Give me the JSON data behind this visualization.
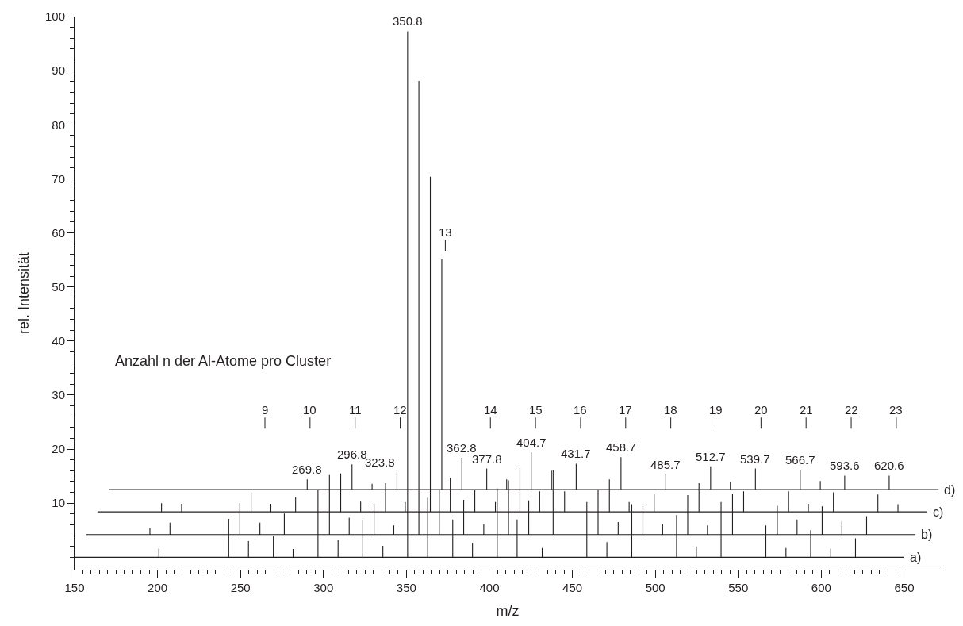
{
  "chart_data": {
    "type": "line",
    "xlabel": "m/z",
    "ylabel": "rel. Intensität",
    "line_style": "solid",
    "xlim": [
      150,
      672
    ],
    "ylim": [
      -2.3,
      100
    ],
    "xticks": [
      150,
      {
        "value": 155,
        "label": null
      },
      {
        "value": 160,
        "label": null
      },
      {
        "value": 165,
        "label": null
      },
      {
        "value": 170,
        "label": null
      },
      {
        "value": 175,
        "label": null
      },
      {
        "value": 180,
        "label": null
      },
      {
        "value": 185,
        "label": null
      },
      {
        "value": 190,
        "label": null
      },
      {
        "value": 195,
        "label": null
      },
      200,
      {
        "value": 205,
        "label": null
      },
      {
        "value": 210,
        "label": null
      },
      {
        "value": 215,
        "label": null
      },
      {
        "value": 220,
        "label": null
      },
      {
        "value": 225,
        "label": null
      },
      {
        "value": 230,
        "label": null
      },
      {
        "value": 235,
        "label": null
      },
      {
        "value": 240,
        "label": null
      },
      {
        "value": 245,
        "label": null
      },
      250,
      {
        "value": 255,
        "label": null
      },
      {
        "value": 260,
        "label": null
      },
      {
        "value": 265,
        "label": null
      },
      {
        "value": 270,
        "label": null
      },
      {
        "value": 275,
        "label": null
      },
      {
        "value": 280,
        "label": null
      },
      {
        "value": 285,
        "label": null
      },
      {
        "value": 290,
        "label": null
      },
      {
        "value": 295,
        "label": null
      },
      300,
      {
        "value": 305,
        "label": null
      },
      {
        "value": 310,
        "label": null
      },
      {
        "value": 315,
        "label": null
      },
      {
        "value": 320,
        "label": null
      },
      {
        "value": 325,
        "label": null
      },
      {
        "value": 330,
        "label": null
      },
      {
        "value": 335,
        "label": null
      },
      {
        "value": 340,
        "label": null
      },
      {
        "value": 345,
        "label": null
      },
      350,
      {
        "value": 355,
        "label": null
      },
      {
        "value": 360,
        "label": null
      },
      {
        "value": 365,
        "label": null
      },
      {
        "value": 370,
        "label": null
      },
      {
        "value": 375,
        "label": null
      },
      {
        "value": 380,
        "label": null
      },
      {
        "value": 385,
        "label": null
      },
      {
        "value": 390,
        "label": null
      },
      {
        "value": 395,
        "label": null
      },
      400,
      {
        "value": 405,
        "label": null
      },
      {
        "value": 410,
        "label": null
      },
      {
        "value": 415,
        "label": null
      },
      {
        "value": 420,
        "label": null
      },
      {
        "value": 425,
        "label": null
      },
      {
        "value": 430,
        "label": null
      },
      {
        "value": 435,
        "label": null
      },
      {
        "value": 440,
        "label": null
      },
      {
        "value": 445,
        "label": null
      },
      450,
      {
        "value": 455,
        "label": null
      },
      {
        "value": 460,
        "label": null
      },
      {
        "value": 465,
        "label": null
      },
      {
        "value": 470,
        "label": null
      },
      {
        "value": 475,
        "label": null
      },
      {
        "value": 480,
        "label": null
      },
      {
        "value": 485,
        "label": null
      },
      {
        "value": 490,
        "label": null
      },
      {
        "value": 495,
        "label": null
      },
      500,
      {
        "value": 505,
        "label": null
      },
      {
        "value": 510,
        "label": null
      },
      {
        "value": 515,
        "label": null
      },
      {
        "value": 520,
        "label": null
      },
      {
        "value": 525,
        "label": null
      },
      {
        "value": 530,
        "label": null
      },
      {
        "value": 535,
        "label": null
      },
      {
        "value": 540,
        "label": null
      },
      {
        "value": 545,
        "label": null
      },
      550,
      {
        "value": 555,
        "label": null
      },
      {
        "value": 560,
        "label": null
      },
      {
        "value": 565,
        "label": null
      },
      {
        "value": 570,
        "label": null
      },
      {
        "value": 575,
        "label": null
      },
      {
        "value": 580,
        "label": null
      },
      {
        "value": 585,
        "label": null
      },
      {
        "value": 590,
        "label": null
      },
      {
        "value": 595,
        "label": null
      },
      600,
      {
        "value": 605,
        "label": null
      },
      {
        "value": 610,
        "label": null
      },
      {
        "value": 615,
        "label": null
      },
      {
        "value": 620,
        "label": null
      },
      {
        "value": 625,
        "label": null
      },
      {
        "value": 630,
        "label": null
      },
      {
        "value": 635,
        "label": null
      },
      {
        "value": 640,
        "label": null
      },
      {
        "value": 645,
        "label": null
      },
      650
    ],
    "yticks": [
      {
        "value": 0,
        "label": null
      },
      {
        "value": 2,
        "label": null
      },
      {
        "value": 4,
        "label": null
      },
      {
        "value": 6,
        "label": null
      },
      {
        "value": 8,
        "label": null
      },
      10,
      {
        "value": 12,
        "label": null
      },
      {
        "value": 14,
        "label": null
      },
      {
        "value": 16,
        "label": null
      },
      {
        "value": 18,
        "label": null
      },
      20,
      {
        "value": 22,
        "label": null
      },
      {
        "value": 24,
        "label": null
      },
      {
        "value": 26,
        "label": null
      },
      {
        "value": 28,
        "label": null
      },
      30,
      {
        "value": 32,
        "label": null
      },
      {
        "value": 34,
        "label": null
      },
      {
        "value": 36,
        "label": null
      },
      {
        "value": 38,
        "label": null
      },
      40,
      {
        "value": 42,
        "label": null
      },
      {
        "value": 44,
        "label": null
      },
      {
        "value": 46,
        "label": null
      },
      {
        "value": 48,
        "label": null
      },
      50,
      {
        "value": 52,
        "label": null
      },
      {
        "value": 54,
        "label": null
      },
      {
        "value": 56,
        "label": null
      },
      {
        "value": 58,
        "label": null
      },
      60,
      {
        "value": 62,
        "label": null
      },
      {
        "value": 64,
        "label": null
      },
      {
        "value": 66,
        "label": null
      },
      {
        "value": 68,
        "label": null
      },
      70,
      {
        "value": 72,
        "label": null
      },
      {
        "value": 74,
        "label": null
      },
      {
        "value": 76,
        "label": null
      },
      {
        "value": 78,
        "label": null
      },
      80,
      {
        "value": 82,
        "label": null
      },
      {
        "value": 84,
        "label": null
      },
      {
        "value": 86,
        "label": null
      },
      {
        "value": 88,
        "label": null
      },
      90,
      {
        "value": 92,
        "label": null
      },
      {
        "value": 94,
        "label": null
      },
      {
        "value": 96,
        "label": null
      },
      {
        "value": 98,
        "label": null
      },
      100
    ],
    "series": [
      {
        "name": "a)",
        "color": "#231f20",
        "x": [
          150,
          200.8,
          200.8,
          200.8,
          242.9,
          242.9,
          242.9,
          254.8,
          254.8,
          254.8,
          269.8,
          269.8,
          269.8,
          281.7,
          281.7,
          281.7,
          296.7,
          296.7,
          296.7,
          308.8,
          308.8,
          308.8,
          323.7,
          323.7,
          323.7,
          335.8,
          335.8,
          335.8,
          350.7,
          350.7,
          350.7,
          362.8,
          362.8,
          362.8,
          377.9,
          377.9,
          377.9,
          389.8,
          389.8,
          389.8,
          404.7,
          404.7,
          404.7,
          416.7,
          416.7,
          416.7,
          431.8,
          431.8,
          431.8,
          458.7,
          458.7,
          458.7,
          470.8,
          470.8,
          470.8,
          485.8,
          485.8,
          485.8,
          512.8,
          512.8,
          512.8,
          524.7,
          524.7,
          524.7,
          539.6,
          539.6,
          539.6,
          566.6,
          566.6,
          566.6,
          578.7,
          578.7,
          578.7,
          593.6,
          593.6,
          593.6,
          605.7,
          605.7,
          605.7,
          620.6,
          620.6,
          620.6,
          650
        ],
        "values": [
          0,
          0,
          1.6,
          0,
          0,
          7.1,
          0,
          0,
          3.0,
          0,
          0,
          3.9,
          0,
          0,
          1.5,
          0,
          0,
          12.4,
          0,
          0,
          3.2,
          0,
          0,
          6.9,
          0,
          0,
          2.1,
          0,
          0,
          97.3,
          0,
          0,
          11.0,
          0,
          0,
          7.0,
          0,
          0,
          2.6,
          0,
          0,
          12.7,
          0,
          0,
          7.0,
          0,
          0,
          1.7,
          0,
          0,
          10.2,
          0,
          0,
          2.8,
          0,
          0,
          9.8,
          0,
          0,
          7.8,
          0,
          0,
          2.0,
          0,
          0,
          10.2,
          0,
          0,
          5.9,
          0,
          0,
          1.7,
          0,
          0,
          5.0,
          0,
          0,
          1.6,
          0,
          0,
          3.5,
          0,
          0
        ]
      },
      {
        "name": "b)",
        "color": "#231f20",
        "x": [
          157,
          195.4,
          195.4,
          195.4,
          207.5,
          207.5,
          207.5,
          249.6,
          249.6,
          249.6,
          261.7,
          261.7,
          261.7,
          276.4,
          276.4,
          276.4,
          303.6,
          303.6,
          303.6,
          315.5,
          315.5,
          315.5,
          330.5,
          330.5,
          330.5,
          342.4,
          342.4,
          342.4,
          357.5,
          357.5,
          357.5,
          369.8,
          369.8,
          369.8,
          384.5,
          384.5,
          384.5,
          396.6,
          396.6,
          396.6,
          411.5,
          411.5,
          411.5,
          423.7,
          423.7,
          423.7,
          438.4,
          438.4,
          438.4,
          465.5,
          465.5,
          465.5,
          477.6,
          477.6,
          477.6,
          492.5,
          492.5,
          492.5,
          504.4,
          504.4,
          504.4,
          519.5,
          519.5,
          519.5,
          531.4,
          531.4,
          531.4,
          546.5,
          546.5,
          546.5,
          573.5,
          573.5,
          573.5,
          585.4,
          585.4,
          585.4,
          600.5,
          600.5,
          600.5,
          612.4,
          612.4,
          612.4,
          627.3,
          627.3,
          627.3,
          656.7
        ],
        "values": [
          4.2,
          4.2,
          5.4,
          4.2,
          4.2,
          6.4,
          4.2,
          4.2,
          10.0,
          4.2,
          4.2,
          6.4,
          4.2,
          4.2,
          8.1,
          4.2,
          4.2,
          15.2,
          4.2,
          4.2,
          7.3,
          4.2,
          4.2,
          9.9,
          4.2,
          4.2,
          5.9,
          4.2,
          4.2,
          88.1,
          4.2,
          4.2,
          12.4,
          4.2,
          4.2,
          10.6,
          4.2,
          4.2,
          6.1,
          4.2,
          4.2,
          14.2,
          4.2,
          4.2,
          10.5,
          4.2,
          4.2,
          16.1,
          4.2,
          4.2,
          12.4,
          4.2,
          4.2,
          6.5,
          4.2,
          4.2,
          9.9,
          4.2,
          4.2,
          6.1,
          4.2,
          4.2,
          11.5,
          4.2,
          4.2,
          5.9,
          4.2,
          4.2,
          11.7,
          4.2,
          4.2,
          9.5,
          4.2,
          4.2,
          7.0,
          4.2,
          4.2,
          9.4,
          4.2,
          4.2,
          6.6,
          4.2,
          4.2,
          7.6,
          4.2,
          4.2
        ]
      },
      {
        "name": "c)",
        "color": "#231f20",
        "x": [
          163.8,
          202.4,
          202.4,
          202.4,
          214.5,
          214.5,
          214.5,
          256.4,
          256.4,
          256.4,
          268.3,
          268.3,
          268.3,
          283.2,
          283.2,
          283.2,
          310.4,
          310.4,
          310.4,
          322.4,
          322.4,
          322.4,
          337.4,
          337.4,
          337.4,
          349.3,
          349.3,
          349.3,
          364.4,
          364.4,
          364.4,
          376.4,
          376.4,
          376.4,
          391.2,
          391.2,
          391.2,
          403.6,
          403.6,
          403.6,
          418.4,
          418.4,
          418.4,
          430.3,
          430.3,
          430.3,
          445.3,
          445.3,
          445.3,
          472.3,
          472.3,
          472.3,
          484.2,
          484.2,
          484.2,
          499.3,
          499.3,
          499.3,
          526.3,
          526.3,
          526.3,
          553.2,
          553.2,
          553.2,
          580.3,
          580.3,
          580.3,
          592.2,
          592.2,
          592.2,
          607.3,
          607.3,
          607.3,
          634.1,
          634.1,
          634.1,
          646.2,
          646.2,
          646.2,
          663.8
        ],
        "values": [
          8.4,
          8.4,
          10.0,
          8.4,
          8.4,
          9.9,
          8.4,
          8.4,
          12.0,
          8.4,
          8.4,
          9.9,
          8.4,
          8.4,
          11.1,
          8.4,
          8.4,
          15.5,
          8.4,
          8.4,
          10.3,
          8.4,
          8.4,
          13.7,
          8.4,
          8.4,
          10.2,
          8.4,
          8.4,
          70.4,
          8.4,
          8.4,
          14.7,
          8.4,
          8.4,
          12.4,
          8.4,
          8.4,
          10.2,
          8.4,
          8.4,
          16.5,
          8.4,
          8.4,
          12.2,
          8.4,
          8.4,
          12.2,
          8.4,
          8.4,
          14.4,
          8.4,
          8.4,
          10.2,
          8.4,
          8.4,
          11.6,
          8.4,
          8.4,
          13.7,
          8.4,
          8.4,
          12.2,
          8.4,
          8.4,
          12.2,
          8.4,
          8.4,
          9.9,
          8.4,
          8.4,
          12.0,
          8.4,
          8.4,
          11.6,
          8.4,
          8.4,
          9.8,
          8.4,
          8.4
        ]
      },
      {
        "name": "d)",
        "color": "#231f20",
        "x": [
          170.7,
          290.2,
          290.2,
          290.2,
          317.2,
          317.2,
          317.2,
          329.3,
          329.3,
          329.3,
          344.3,
          344.3,
          344.3,
          371.3,
          371.3,
          371.3,
          383.4,
          383.4,
          383.4,
          398.4,
          398.4,
          398.4,
          410.4,
          410.4,
          410.4,
          425.2,
          425.2,
          425.2,
          437.4,
          437.4,
          437.4,
          452.3,
          452.3,
          452.3,
          479.3,
          479.3,
          479.3,
          506.3,
          506.3,
          506.3,
          533.3,
          533.3,
          533.3,
          545.2,
          545.2,
          545.2,
          560.3,
          560.3,
          560.3,
          587.3,
          587.3,
          587.3,
          599.4,
          599.4,
          599.4,
          614.1,
          614.1,
          614.1,
          640.9,
          640.9,
          640.9,
          670.7
        ],
        "values": [
          12.5,
          12.5,
          14.4,
          12.5,
          12.5,
          17.2,
          12.5,
          12.5,
          13.6,
          12.5,
          12.5,
          15.7,
          12.5,
          12.5,
          55.1,
          12.5,
          12.5,
          18.4,
          12.5,
          12.5,
          16.4,
          12.5,
          12.5,
          14.4,
          12.5,
          12.5,
          19.4,
          12.5,
          12.5,
          16.0,
          12.5,
          12.5,
          17.3,
          12.5,
          12.5,
          18.5,
          12.5,
          12.5,
          15.3,
          12.5,
          12.5,
          16.8,
          12.5,
          12.5,
          13.9,
          12.5,
          12.5,
          16.4,
          12.5,
          12.5,
          16.2,
          12.5,
          12.5,
          14.1,
          12.5,
          12.5,
          15.1,
          12.5,
          12.5,
          15.1,
          12.5,
          12.5
        ]
      }
    ],
    "annotations": [
      "Anzahl n der Al-Atome pro Cluster",
      {
        "text": "269.8",
        "x": 290.2,
        "y": 14.4
      },
      {
        "text": "296.8",
        "x": 317.2,
        "y": 17.2
      },
      {
        "text": "323.8",
        "x": 344.3,
        "y": 15.7
      },
      {
        "text": "350.8",
        "x": 350.7,
        "y": 97.3
      },
      {
        "text": "362.8",
        "x": 383.4,
        "y": 18.4
      },
      {
        "text": "377.8",
        "x": 398.4,
        "y": 16.4
      },
      {
        "text": "404.7",
        "x": 425.2,
        "y": 19.4
      },
      {
        "text": "431.7",
        "x": 452.3,
        "y": 17.3
      },
      {
        "text": "458.7",
        "x": 479.3,
        "y": 18.5
      },
      {
        "text": "485.7",
        "x": 506.3,
        "y": 15.3
      },
      {
        "text": "512.7",
        "x": 533.3,
        "y": 16.8
      },
      {
        "text": "539.7",
        "x": 560.3,
        "y": 16.4
      },
      {
        "text": "566.7",
        "x": 587.3,
        "y": 16.2
      },
      {
        "text": "593.6",
        "x": 614.1,
        "y": 15.1
      },
      {
        "text": "620.6",
        "x": 640.9,
        "y": 15.1
      },
      "9",
      "10",
      "11",
      "12",
      "13",
      "14",
      "15",
      "16",
      "17",
      "18",
      "19",
      "20",
      "21",
      "22",
      "23"
    ]
  }
}
